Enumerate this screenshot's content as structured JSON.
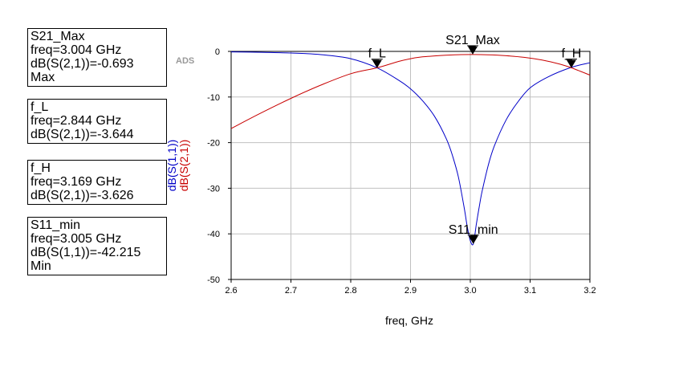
{
  "logo": "ADS",
  "marker_readouts": [
    {
      "lines": [
        "S21_Max",
        "freq=3.004 GHz",
        "dB(S(2,1))=-0.693",
        "Max"
      ]
    },
    {
      "lines": [
        "f_L",
        "freq=2.844 GHz",
        "dB(S(2,1))=-3.644"
      ]
    },
    {
      "lines": [
        "f_H",
        "freq=3.169 GHz",
        "dB(S(2,1))=-3.626"
      ]
    },
    {
      "lines": [
        "S11_min",
        "freq=3.005 GHz",
        "dB(S(1,1))=-42.215",
        "Min"
      ]
    }
  ],
  "chart_data": {
    "type": "line",
    "xlabel": "freq, GHz",
    "ylabel": "",
    "xlim": [
      2.6,
      3.2
    ],
    "ylim": [
      -50,
      0
    ],
    "grid": true,
    "x_ticks": [
      "2.6",
      "2.7",
      "2.8",
      "2.9",
      "3.0",
      "3.1",
      "3.2"
    ],
    "y_ticks": [
      "0",
      "-10",
      "-20",
      "-30",
      "-40",
      "-50"
    ],
    "y_tick_values": [
      0,
      -10,
      -20,
      -30,
      -40,
      -50
    ],
    "x_tick_values": [
      2.6,
      2.7,
      2.8,
      2.9,
      3.0,
      3.1,
      3.2
    ],
    "series": [
      {
        "name": "dB(S(1,1))",
        "color": "#0000c8",
        "x": [
          2.6,
          2.65,
          2.7,
          2.75,
          2.8,
          2.844,
          2.88,
          2.9,
          2.92,
          2.94,
          2.96,
          2.97,
          2.98,
          2.99,
          2.995,
          3.0,
          3.005,
          3.01,
          3.015,
          3.02,
          3.03,
          3.04,
          3.06,
          3.08,
          3.1,
          3.13,
          3.169,
          3.2
        ],
        "y": [
          -0.1,
          -0.2,
          -0.35,
          -0.7,
          -1.6,
          -3.6,
          -6.3,
          -8.2,
          -10.8,
          -14.2,
          -19.2,
          -22.8,
          -27.5,
          -34.5,
          -38.5,
          -41.5,
          -42.2,
          -38.0,
          -34.0,
          -30.5,
          -25.0,
          -20.8,
          -15.0,
          -11.0,
          -8.0,
          -5.6,
          -3.5,
          -2.5
        ]
      },
      {
        "name": "dB(S(2,1))",
        "color": "#c80000",
        "x": [
          2.6,
          2.65,
          2.7,
          2.75,
          2.8,
          2.844,
          2.88,
          2.9,
          2.92,
          2.95,
          2.98,
          3.004,
          3.03,
          3.06,
          3.09,
          3.12,
          3.15,
          3.169,
          3.2
        ],
        "y": [
          -16.9,
          -13.5,
          -10.3,
          -7.4,
          -4.9,
          -3.6,
          -2.2,
          -1.6,
          -1.2,
          -0.9,
          -0.72,
          -0.69,
          -0.75,
          -0.95,
          -1.3,
          -1.9,
          -2.8,
          -3.6,
          -5.2
        ]
      }
    ],
    "markers": [
      {
        "label": "S21_Max",
        "x": 3.004,
        "y": -0.693
      },
      {
        "label": "f_L",
        "x": 2.844,
        "y": -3.644
      },
      {
        "label": "f_H",
        "x": 3.169,
        "y": -3.626
      },
      {
        "label": "S11_min",
        "x": 3.005,
        "y": -42.215
      }
    ]
  }
}
